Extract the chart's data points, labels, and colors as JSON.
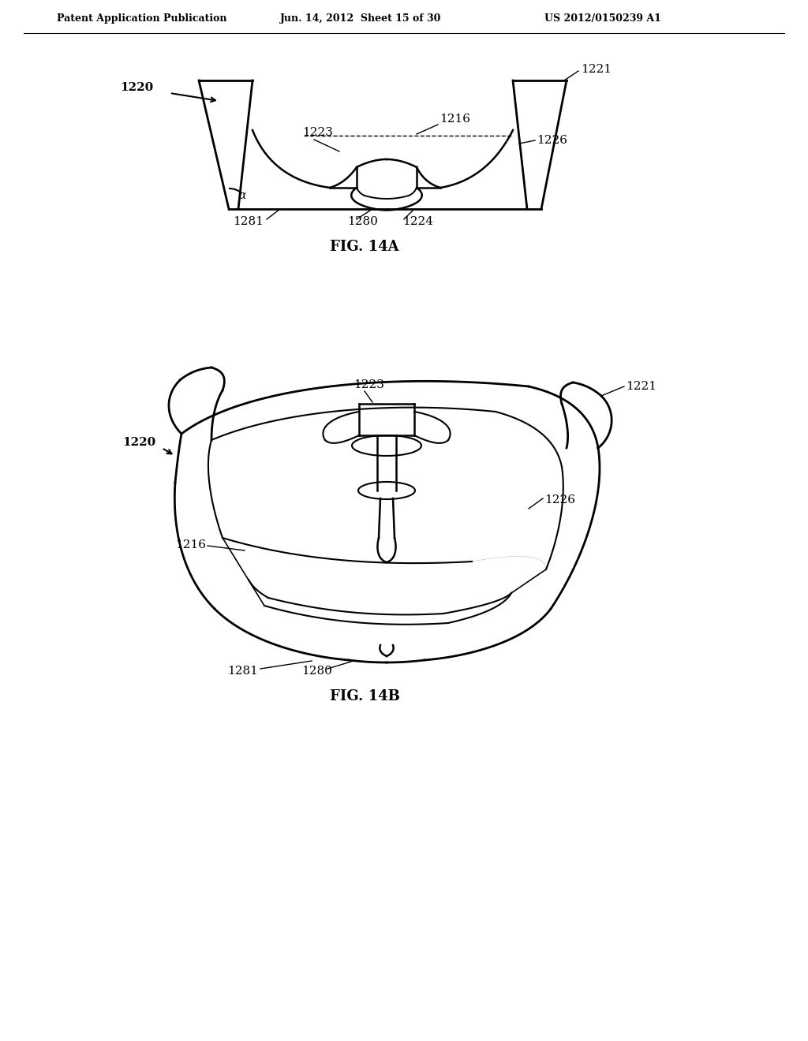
{
  "background_color": "#ffffff",
  "header_text": "Patent Application Publication",
  "header_date": "Jun. 14, 2012  Sheet 15 of 30",
  "header_patent": "US 2012/0150239 A1",
  "fig14a_caption": "FIG. 14A",
  "fig14b_caption": "FIG. 14B",
  "label_1220a": "1220",
  "label_1221a": "1221",
  "label_1216a": "1216",
  "label_1223a": "1223",
  "label_1226a": "1226",
  "label_1280a": "1280",
  "label_1281a": "1281",
  "label_1224a": "1224",
  "label_alpha": "α",
  "label_1220b": "1220",
  "label_1221b": "1221",
  "label_1223b": "1223",
  "label_1216b": "1216",
  "label_1226b": "1226",
  "label_1280b": "1280",
  "label_1281b": "1281",
  "line_color": "#000000",
  "text_color": "#000000"
}
